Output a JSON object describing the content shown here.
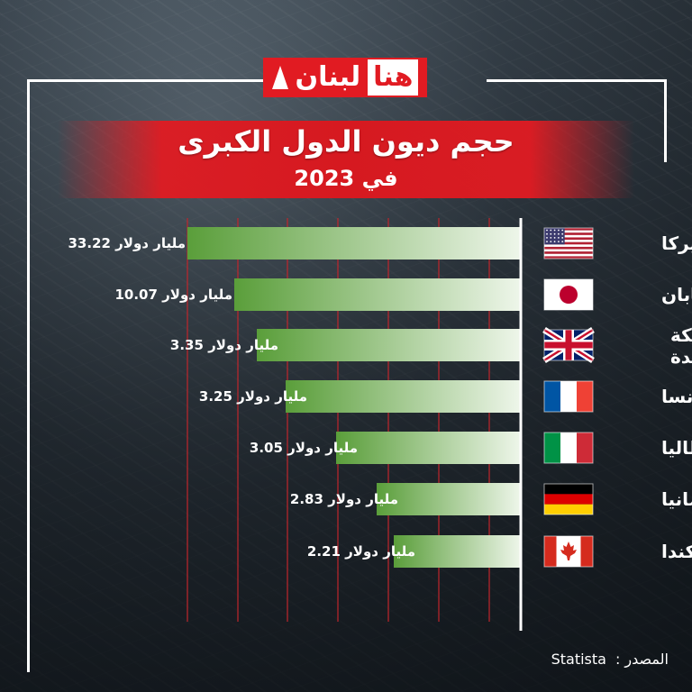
{
  "brand": {
    "logo_text": "لبنان",
    "logo_text_2": "هنا"
  },
  "header": {
    "title": "حجم ديون الدول الكبرى",
    "subtitle": "في 2023"
  },
  "footer": {
    "source_label": "المصدر :",
    "source_value": "Statista"
  },
  "colors": {
    "accent": "#e11b22",
    "bar_start": "#e8f3e4",
    "bar_end": "#5a9e3a",
    "gridline": "#c0262c"
  },
  "chart_data": {
    "type": "bar",
    "orientation": "horizontal",
    "title": "حجم ديون الدول الكبرى",
    "subtitle": "في 2023",
    "categories": [
      "أميركا",
      "اليابان",
      "المملكة المتحدة",
      "فرنسا",
      "إيطاليا",
      "ألمانيا",
      "كندا"
    ],
    "values": [
      33.22,
      10.07,
      3.35,
      3.25,
      3.05,
      2.83,
      2.21
    ],
    "value_labels": [
      "33.22",
      "10.07",
      "3.35",
      "3.25",
      "3.05",
      "2.83",
      "2.21"
    ],
    "unit": "مليار دولار",
    "flags": [
      "us-flag-icon",
      "japan-flag-icon",
      "uk-flag-icon",
      "france-flag-icon",
      "italy-flag-icon",
      "germany-flag-icon",
      "canada-flag-icon"
    ],
    "grid": true,
    "legend": "none"
  }
}
